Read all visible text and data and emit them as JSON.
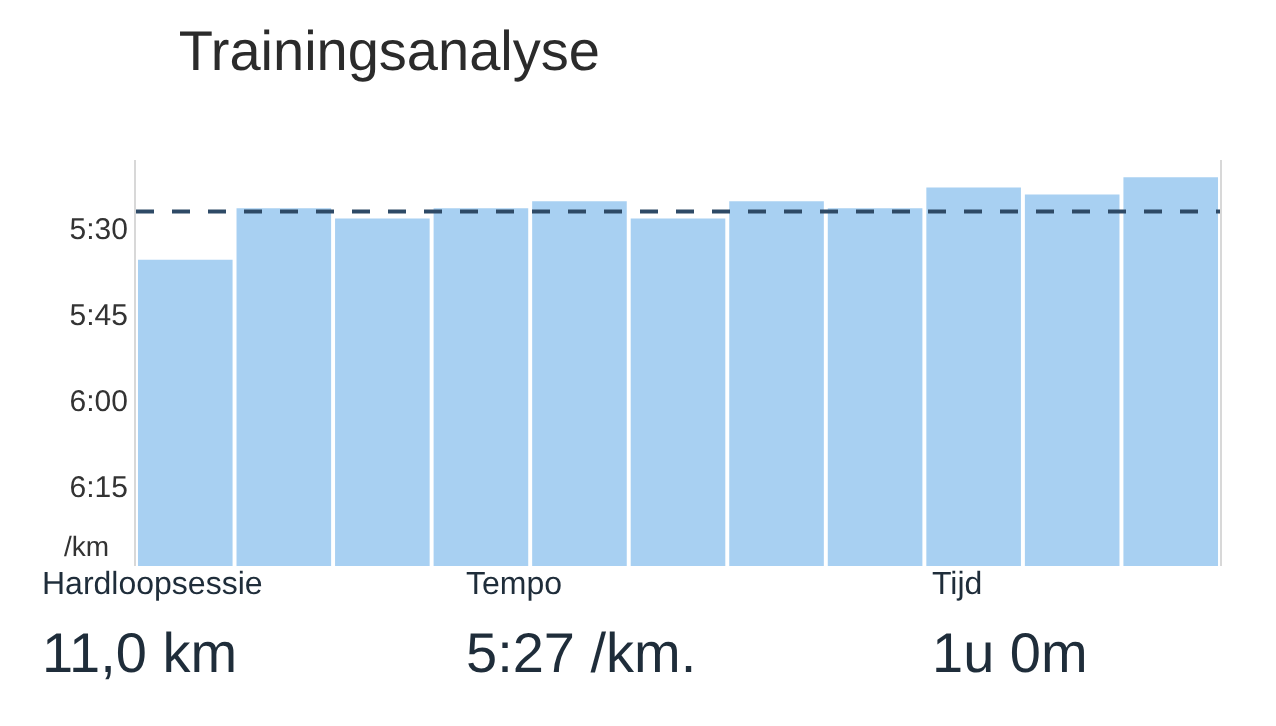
{
  "chart_data": {
    "type": "bar",
    "title": "Trainingsanalyse",
    "ylabel": "/km",
    "categories": [
      null,
      null,
      null,
      null,
      null,
      null,
      null,
      null,
      null,
      null,
      null
    ],
    "base": [
      6.48,
      6.48,
      6.48,
      6.48,
      6.48,
      6.48,
      6.48,
      6.48,
      6.48,
      6.48,
      6.48
    ],
    "values": [
      -0.89,
      -1.04,
      -1.01,
      -1.04,
      -1.06,
      -1.01,
      -1.06,
      -1.04,
      -1.1,
      -1.08,
      -1.13
    ],
    "color": "#a8d0f2",
    "ylim": [
      6.48,
      5.3
    ],
    "yticks": [
      {
        "value": 5.5,
        "label": "5:30"
      },
      {
        "value": 5.75,
        "label": "5:45"
      },
      {
        "value": 6.0,
        "label": "6:00"
      },
      {
        "value": 6.25,
        "label": "6:15"
      }
    ],
    "ref_lines": [
      {
        "axis": "y",
        "value": 5.45,
        "color": "#2e4a66",
        "line_style": "dashed"
      }
    ],
    "annotations": [
      "Hardloopsessie",
      "11,0 km",
      "Tempo",
      "5:27 /km.",
      "Tijd",
      "1u 0m"
    ],
    "grid": false,
    "legend": false
  }
}
